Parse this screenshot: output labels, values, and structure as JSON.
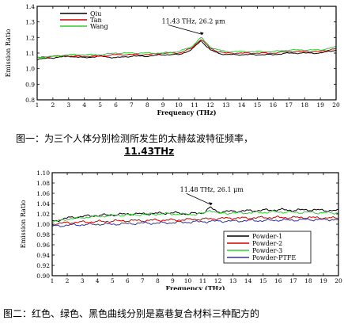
{
  "figures": [
    {
      "caption_line1": "图一：为三个人体分别检测所发生的太赫兹波特征频率，",
      "caption_line2": "11.43THz",
      "chart_data": {
        "type": "line",
        "title": "",
        "xlabel": "Frequency (THz)",
        "ylabel": "Emission Ratio",
        "xlim": [
          1,
          20
        ],
        "ylim": [
          0.8,
          1.4
        ],
        "xticks": [
          1,
          2,
          3,
          4,
          5,
          6,
          7,
          8,
          9,
          10,
          11,
          12,
          13,
          14,
          15,
          16,
          17,
          18,
          19,
          20
        ],
        "yticks": [
          0.8,
          0.9,
          1.0,
          1.1,
          1.2,
          1.3,
          1.4
        ],
        "legend_position": "top-left",
        "annotation": "11.43 THz, 26.2 μm",
        "annotation_point": [
          11.43,
          1.2
        ],
        "series": [
          {
            "name": "Qiu",
            "color": "#000000",
            "points": [
              [
                1,
                1.06
              ],
              [
                2,
                1.07
              ],
              [
                3,
                1.08
              ],
              [
                4,
                1.07
              ],
              [
                5,
                1.08
              ],
              [
                6,
                1.07
              ],
              [
                7,
                1.08
              ],
              [
                8,
                1.08
              ],
              [
                9,
                1.09
              ],
              [
                10,
                1.09
              ],
              [
                10.8,
                1.12
              ],
              [
                11.2,
                1.16
              ],
              [
                11.43,
                1.18
              ],
              [
                11.7,
                1.15
              ],
              [
                12,
                1.12
              ],
              [
                12.5,
                1.1
              ],
              [
                13,
                1.09
              ],
              [
                14,
                1.09
              ],
              [
                15,
                1.09
              ],
              [
                16,
                1.09
              ],
              [
                17,
                1.1
              ],
              [
                18,
                1.1
              ],
              [
                19,
                1.1
              ],
              [
                20,
                1.12
              ]
            ]
          },
          {
            "name": "Tan",
            "color": "#cc0000",
            "points": [
              [
                1,
                1.07
              ],
              [
                2,
                1.08
              ],
              [
                3,
                1.08
              ],
              [
                4,
                1.08
              ],
              [
                5,
                1.08
              ],
              [
                6,
                1.09
              ],
              [
                7,
                1.09
              ],
              [
                8,
                1.09
              ],
              [
                9,
                1.1
              ],
              [
                10,
                1.1
              ],
              [
                10.8,
                1.13
              ],
              [
                11.2,
                1.17
              ],
              [
                11.43,
                1.19
              ],
              [
                11.7,
                1.16
              ],
              [
                12,
                1.13
              ],
              [
                12.5,
                1.11
              ],
              [
                13,
                1.1
              ],
              [
                14,
                1.1
              ],
              [
                15,
                1.1
              ],
              [
                16,
                1.1
              ],
              [
                17,
                1.11
              ],
              [
                18,
                1.11
              ],
              [
                19,
                1.11
              ],
              [
                20,
                1.13
              ]
            ]
          },
          {
            "name": "Wang",
            "color": "#33cc33",
            "points": [
              [
                1,
                1.07
              ],
              [
                2,
                1.08
              ],
              [
                3,
                1.09
              ],
              [
                4,
                1.09
              ],
              [
                5,
                1.09
              ],
              [
                6,
                1.1
              ],
              [
                7,
                1.1
              ],
              [
                8,
                1.1
              ],
              [
                9,
                1.1
              ],
              [
                10,
                1.11
              ],
              [
                10.8,
                1.14
              ],
              [
                11.2,
                1.18
              ],
              [
                11.43,
                1.2
              ],
              [
                11.7,
                1.17
              ],
              [
                12,
                1.14
              ],
              [
                12.5,
                1.12
              ],
              [
                13,
                1.11
              ],
              [
                14,
                1.11
              ],
              [
                15,
                1.11
              ],
              [
                16,
                1.11
              ],
              [
                17,
                1.12
              ],
              [
                18,
                1.12
              ],
              [
                19,
                1.12
              ],
              [
                20,
                1.14
              ]
            ]
          }
        ]
      }
    },
    {
      "caption_line1": "图二：红色、绿色、黑色曲线分别是嘉巷复合材料三种配方的",
      "chart_data": {
        "type": "line",
        "title": "",
        "xlabel": "Frequency (THz)",
        "ylabel": "Emission Ratio",
        "xlim": [
          1,
          20
        ],
        "ylim": [
          0.9,
          1.1
        ],
        "xticks": [
          1,
          2,
          3,
          4,
          5,
          6,
          7,
          8,
          9,
          10,
          11,
          12,
          13,
          14,
          15,
          16,
          17,
          18,
          19,
          20
        ],
        "yticks": [
          0.9,
          0.92,
          0.94,
          0.96,
          0.98,
          1.0,
          1.02,
          1.04,
          1.06,
          1.08,
          1.1
        ],
        "legend_position": "bottom-right",
        "annotation": "11.48 THz, 26.1 μm",
        "annotation_point": [
          11.48,
          1.032
        ],
        "series": [
          {
            "name": "Powder-1",
            "color": "#000000",
            "points": [
              [
                1,
                1.005
              ],
              [
                2,
                1.012
              ],
              [
                3,
                1.015
              ],
              [
                4,
                1.017
              ],
              [
                5,
                1.018
              ],
              [
                6,
                1.02
              ],
              [
                7,
                1.02
              ],
              [
                8,
                1.021
              ],
              [
                9,
                1.022
              ],
              [
                10,
                1.02
              ],
              [
                11,
                1.022
              ],
              [
                11.48,
                1.032
              ],
              [
                12,
                1.024
              ],
              [
                13,
                1.025
              ],
              [
                14,
                1.026
              ],
              [
                15,
                1.027
              ],
              [
                16,
                1.028
              ],
              [
                17,
                1.027
              ],
              [
                18,
                1.028
              ],
              [
                19,
                1.027
              ],
              [
                20,
                1.026
              ]
            ]
          },
          {
            "name": "Powder-2",
            "color": "#cc0000",
            "points": [
              [
                1,
                1.0
              ],
              [
                2,
                1.003
              ],
              [
                3,
                1.004
              ],
              [
                4,
                1.005
              ],
              [
                5,
                1.006
              ],
              [
                6,
                1.007
              ],
              [
                7,
                1.007
              ],
              [
                8,
                1.008
              ],
              [
                9,
                1.008
              ],
              [
                10,
                1.009
              ],
              [
                11,
                1.01
              ],
              [
                12,
                1.011
              ],
              [
                13,
                1.012
              ],
              [
                14,
                1.012
              ],
              [
                15,
                1.013
              ],
              [
                16,
                1.013
              ],
              [
                17,
                1.013
              ],
              [
                18,
                1.013
              ],
              [
                19,
                1.012
              ],
              [
                20,
                1.012
              ]
            ]
          },
          {
            "name": "Powder-3",
            "color": "#33cc33",
            "points": [
              [
                1,
                1.004
              ],
              [
                2,
                1.01
              ],
              [
                3,
                1.013
              ],
              [
                4,
                1.015
              ],
              [
                5,
                1.017
              ],
              [
                6,
                1.018
              ],
              [
                7,
                1.019
              ],
              [
                8,
                1.02
              ],
              [
                9,
                1.02
              ],
              [
                10,
                1.019
              ],
              [
                11,
                1.02
              ],
              [
                11.48,
                1.028
              ],
              [
                12,
                1.021
              ],
              [
                13,
                1.022
              ],
              [
                14,
                1.022
              ],
              [
                15,
                1.023
              ],
              [
                16,
                1.024
              ],
              [
                17,
                1.023
              ],
              [
                18,
                1.023
              ],
              [
                19,
                1.022
              ],
              [
                20,
                1.022
              ]
            ]
          },
          {
            "name": "Powder-PTFE",
            "color": "#333399",
            "points": [
              [
                1,
                0.996
              ],
              [
                2,
                0.998
              ],
              [
                3,
                0.999
              ],
              [
                4,
                1.0
              ],
              [
                5,
                1.0
              ],
              [
                6,
                1.001
              ],
              [
                7,
                1.002
              ],
              [
                8,
                1.002
              ],
              [
                9,
                1.003
              ],
              [
                10,
                1.004
              ],
              [
                11,
                1.005
              ],
              [
                12,
                1.006
              ],
              [
                13,
                1.006
              ],
              [
                14,
                1.007
              ],
              [
                15,
                1.007
              ],
              [
                16,
                1.008
              ],
              [
                17,
                1.008
              ],
              [
                18,
                1.009
              ],
              [
                19,
                1.009
              ],
              [
                20,
                1.009
              ]
            ]
          }
        ]
      }
    }
  ]
}
